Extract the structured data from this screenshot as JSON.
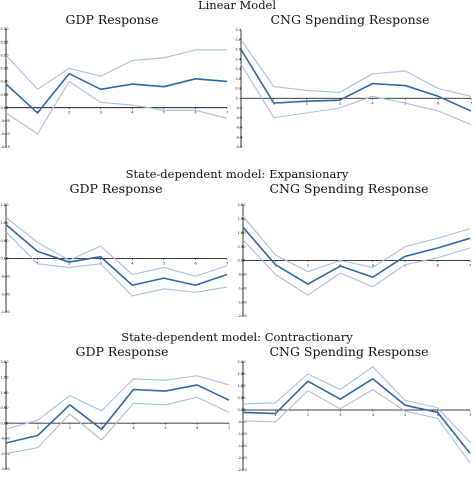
{
  "figure": {
    "sections": [
      {
        "title": "Linear Model"
      },
      {
        "title": "State-dependent model: Expansionary"
      },
      {
        "title": "State-dependent model: Contractionary"
      }
    ]
  },
  "chart_data": [
    {
      "type": "line",
      "section": 0,
      "title": "GDP Response",
      "x": [
        0,
        1,
        2,
        3,
        4,
        5,
        6,
        7
      ],
      "xticks": [
        "1",
        "2",
        "3",
        "4",
        "5",
        "6",
        "7"
      ],
      "ylim": [
        -0.15,
        0.3
      ],
      "yticks": [
        "0.30",
        "0.25",
        "0.20",
        "0.15",
        "0.10",
        "0.05",
        "0.00",
        "-0.05",
        "-0.10",
        "-0.15"
      ],
      "grid": false,
      "legend": "none",
      "series": [
        {
          "role": "upper",
          "values": [
            0.2,
            0.07,
            0.15,
            0.12,
            0.18,
            0.19,
            0.22,
            0.22
          ]
        },
        {
          "role": "estimate",
          "values": [
            0.09,
            -0.02,
            0.13,
            0.07,
            0.09,
            0.08,
            0.11,
            0.1
          ]
        },
        {
          "role": "lower",
          "values": [
            -0.02,
            -0.1,
            0.1,
            0.02,
            0.01,
            -0.01,
            -0.01,
            -0.04
          ]
        }
      ]
    },
    {
      "type": "line",
      "section": 0,
      "title": "CNG Spending Response",
      "x": [
        0,
        1,
        2,
        3,
        4,
        5,
        6,
        7
      ],
      "xticks": [
        "1",
        "2",
        "3",
        "4",
        "5",
        "6",
        "7"
      ],
      "ylim": [
        -0.5,
        0.7
      ],
      "yticks": [
        "0.7",
        "0.6",
        "0.5",
        "0.4",
        "0.3",
        "0.2",
        "0.1",
        "0",
        "-0.1",
        "-0.2",
        "-0.3",
        "-0.4",
        "-0.5"
      ],
      "grid": false,
      "legend": "none",
      "series": [
        {
          "role": "upper",
          "values": [
            0.6,
            0.12,
            0.08,
            0.06,
            0.25,
            0.28,
            0.1,
            0.02
          ]
        },
        {
          "role": "estimate",
          "values": [
            0.5,
            -0.05,
            -0.03,
            -0.02,
            0.15,
            0.13,
            0.02,
            -0.13
          ]
        },
        {
          "role": "lower",
          "values": [
            0.35,
            -0.2,
            -0.15,
            -0.1,
            0.02,
            -0.05,
            -0.13,
            -0.27
          ]
        }
      ]
    },
    {
      "type": "line",
      "section": 1,
      "title": "GDP Response",
      "x": [
        0,
        1,
        2,
        3,
        4,
        5,
        6,
        7
      ],
      "xticks": [
        "1",
        "2",
        "3",
        "4",
        "5",
        "6",
        "7"
      ],
      "ylim": [
        -1.5,
        1.5
      ],
      "yticks": [
        "1.50",
        "1.00",
        "0.50",
        "0.00",
        "-0.50",
        "-1.00",
        "-1.50"
      ],
      "grid": false,
      "legend": "none",
      "series": [
        {
          "role": "upper",
          "values": [
            1.15,
            0.45,
            -0.05,
            0.35,
            -0.45,
            -0.25,
            -0.5,
            -0.2
          ]
        },
        {
          "role": "estimate",
          "values": [
            0.95,
            0.2,
            -0.1,
            0.05,
            -0.75,
            -0.55,
            -0.75,
            -0.45
          ]
        },
        {
          "role": "lower",
          "values": [
            0.75,
            -0.15,
            -0.25,
            -0.15,
            -1.05,
            -0.85,
            -0.95,
            -0.8
          ]
        }
      ]
    },
    {
      "type": "line",
      "section": 1,
      "title": "CNG Spending Response",
      "x": [
        0,
        1,
        2,
        3,
        4,
        5,
        6,
        7
      ],
      "xticks": [
        "1",
        "2",
        "3",
        "4",
        "5",
        "6",
        "7"
      ],
      "ylim": [
        -2.0,
        2.0
      ],
      "yticks": [
        "2.00",
        "1.50",
        "1.00",
        "0.50",
        "0.00",
        "-0.50",
        "-1.00",
        "-1.50",
        "-2.00"
      ],
      "grid": false,
      "legend": "none",
      "series": [
        {
          "role": "upper",
          "values": [
            1.6,
            0.2,
            -0.4,
            0.0,
            -0.25,
            0.5,
            0.8,
            1.15
          ]
        },
        {
          "role": "estimate",
          "values": [
            1.2,
            -0.15,
            -0.85,
            -0.2,
            -0.6,
            0.15,
            0.45,
            0.8
          ]
        },
        {
          "role": "lower",
          "values": [
            0.75,
            -0.5,
            -1.25,
            -0.45,
            -0.95,
            -0.15,
            0.1,
            0.45
          ]
        }
      ]
    },
    {
      "type": "line",
      "section": 2,
      "title": "GDP Response",
      "x": [
        0,
        1,
        2,
        3,
        4,
        5,
        6,
        7
      ],
      "xticks": [
        "1",
        "2",
        "3",
        "4",
        "5",
        "6",
        "7"
      ],
      "ylim": [
        -1.5,
        2.0
      ],
      "yticks": [
        "2.00",
        "1.50",
        "1.00",
        "0.50",
        "0.00",
        "-0.50",
        "-1.00",
        "-1.50"
      ],
      "grid": false,
      "legend": "none",
      "series": [
        {
          "role": "upper",
          "values": [
            -0.2,
            0.1,
            0.9,
            0.4,
            1.45,
            1.4,
            1.55,
            1.25
          ]
        },
        {
          "role": "estimate",
          "values": [
            -0.65,
            -0.4,
            0.6,
            -0.2,
            1.1,
            1.05,
            1.25,
            0.75
          ]
        },
        {
          "role": "lower",
          "values": [
            -1.0,
            -0.8,
            0.3,
            -0.55,
            0.65,
            0.6,
            0.85,
            0.35
          ]
        }
      ]
    },
    {
      "type": "line",
      "section": 2,
      "title": "CNG Spending Response",
      "x": [
        0,
        1,
        2,
        3,
        4,
        5,
        6,
        7
      ],
      "xticks": [
        "1",
        "2",
        "3",
        "4",
        "5",
        "6",
        "7"
      ],
      "ylim": [
        -2.5,
        2.0
      ],
      "yticks": [
        "2.00",
        "1.50",
        "1.00",
        "0.50",
        "0.00",
        "-0.50",
        "-1.00",
        "-1.50",
        "-2.00",
        "-2.50"
      ],
      "grid": false,
      "legend": "none",
      "series": [
        {
          "role": "upper",
          "values": [
            0.25,
            0.3,
            1.5,
            0.85,
            1.8,
            0.4,
            0.1,
            -1.35
          ]
        },
        {
          "role": "estimate",
          "values": [
            -0.1,
            -0.15,
            1.2,
            0.45,
            1.3,
            0.2,
            -0.1,
            -1.8
          ]
        },
        {
          "role": "lower",
          "values": [
            -0.45,
            -0.5,
            0.8,
            0.05,
            0.85,
            -0.05,
            -0.35,
            -2.2
          ]
        }
      ]
    }
  ],
  "colors": {
    "estimate": "#2f67a8",
    "band": "#a9bfe0",
    "axis": "#000000",
    "text": "#111111"
  }
}
